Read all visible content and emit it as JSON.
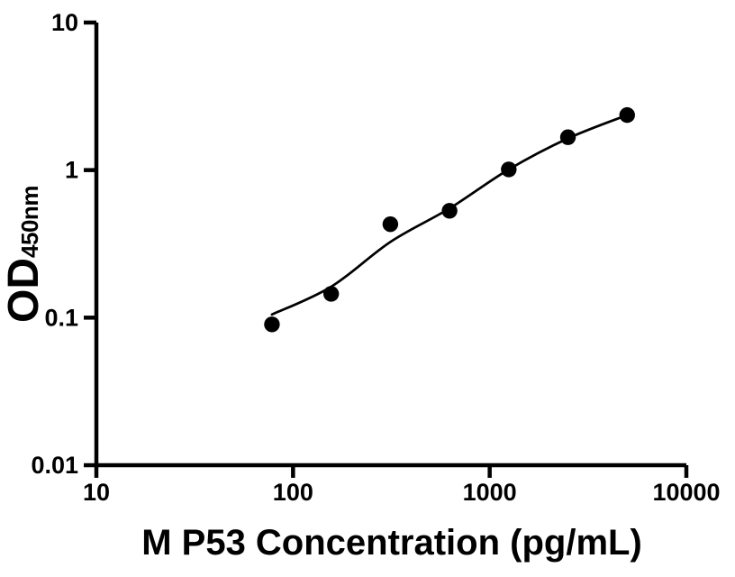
{
  "figure": {
    "background_color": "#ffffff",
    "axis_color": "#000000"
  },
  "chart_data": {
    "type": "scatter",
    "title": "",
    "xlabel": "M P53 Concentration (pg/mL)",
    "ylabel_main": "OD",
    "ylabel_sub": "450nm",
    "x_scale": "log10",
    "y_scale": "log10",
    "xlim": [
      10,
      10000
    ],
    "ylim": [
      0.01,
      10
    ],
    "x_ticks": {
      "values": [
        10,
        100,
        1000,
        10000
      ],
      "labels": [
        "10",
        "100",
        "1000",
        "10000"
      ]
    },
    "y_ticks": {
      "values": [
        0.01,
        0.1,
        1,
        10
      ],
      "labels": [
        "0.01",
        "0.1",
        "1",
        "10"
      ]
    },
    "grid": false,
    "legend": false,
    "series": [
      {
        "name": "standard-points",
        "kind": "points",
        "marker": "circle",
        "color": "#000000",
        "x": [
          78.125,
          156.25,
          312.5,
          625,
          1250,
          2500,
          5000
        ],
        "y": [
          0.09,
          0.145,
          0.43,
          0.53,
          1.01,
          1.67,
          2.36
        ]
      },
      {
        "name": "fit-curve",
        "kind": "smooth-line",
        "color": "#000000",
        "x": [
          78.125,
          156.25,
          312.5,
          625,
          1250,
          2500,
          5000
        ],
        "y": [
          0.105,
          0.162,
          0.326,
          0.55,
          1.01,
          1.64,
          2.36
        ]
      }
    ]
  }
}
